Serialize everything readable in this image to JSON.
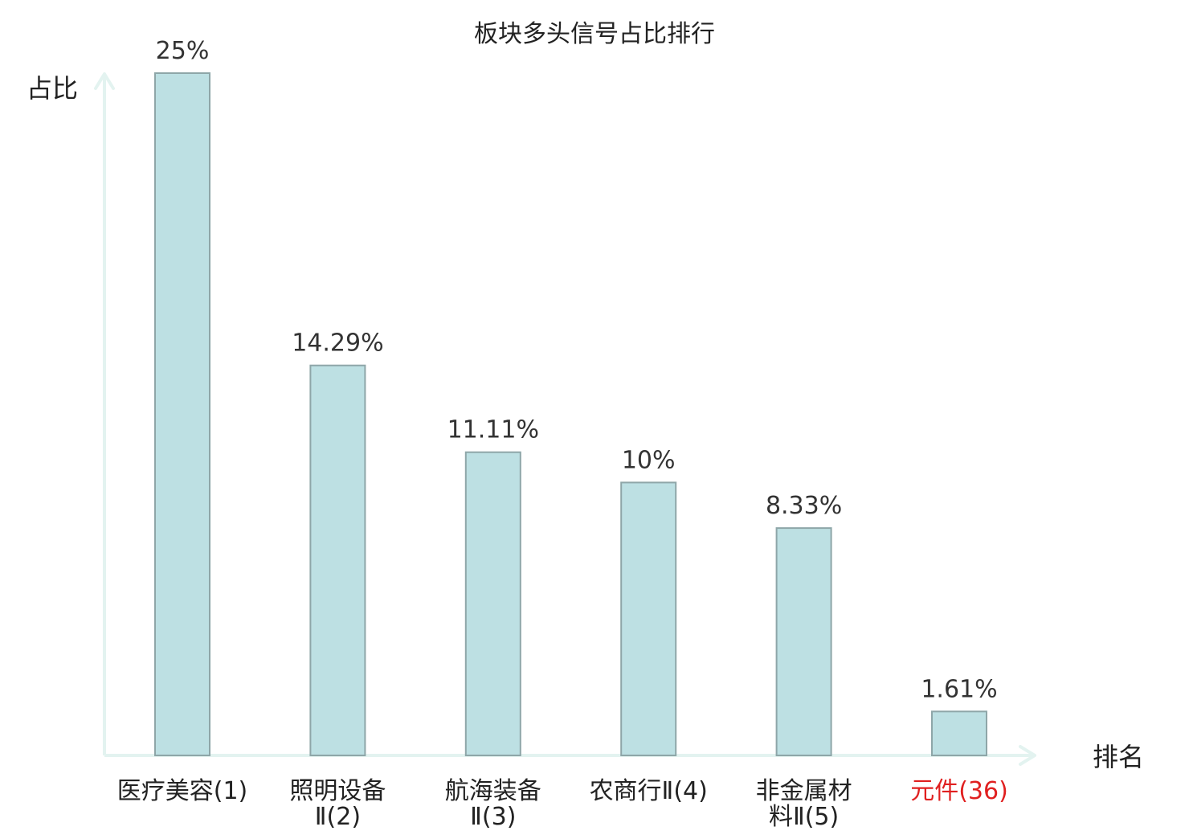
{
  "colors": {
    "bar_fill": "#bde0e3",
    "bar_stroke": "#8ea6a8",
    "axis": "#e3f3f0",
    "text": "#222222",
    "value_label": "#333333",
    "highlight": "#e02020"
  },
  "chart_data": {
    "type": "bar",
    "title": "板块多头信号占比排行",
    "ylabel": "占比",
    "xlabel": "排名",
    "grid": false,
    "legend": "none",
    "ylim": [
      0,
      25
    ],
    "categories": [
      {
        "lines": [
          "医疗美容(1)"
        ],
        "highlight": false
      },
      {
        "lines": [
          "照明设备",
          "Ⅱ(2)"
        ],
        "highlight": false
      },
      {
        "lines": [
          "航海装备",
          "Ⅱ(3)"
        ],
        "highlight": false
      },
      {
        "lines": [
          "农商行Ⅱ(4)"
        ],
        "highlight": false
      },
      {
        "lines": [
          "非金属材",
          "料Ⅱ(5)"
        ],
        "highlight": false
      },
      {
        "lines": [
          "元件(36)"
        ],
        "highlight": true
      }
    ],
    "values": [
      25,
      14.29,
      11.11,
      10,
      8.33,
      1.61
    ],
    "value_labels": [
      "25%",
      "14.29%",
      "11.11%",
      "10%",
      "8.33%",
      "1.61%"
    ]
  }
}
